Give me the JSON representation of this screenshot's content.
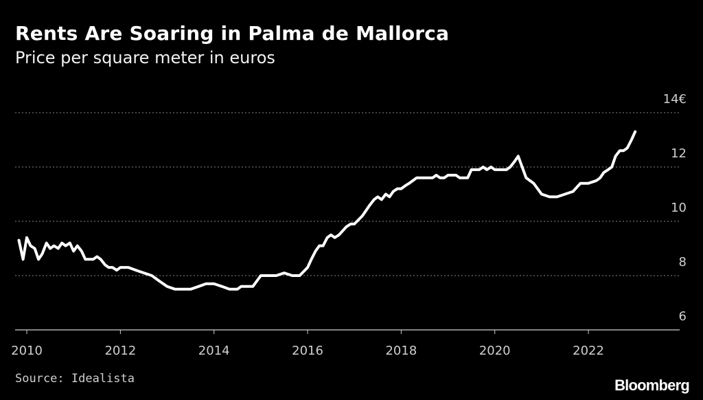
{
  "header": {
    "title": "Rents Are Soaring in Palma de Mallorca",
    "subtitle": "Price per square meter in euros"
  },
  "footer": {
    "source": "Source: Idealista",
    "brand": "Bloomberg"
  },
  "colors": {
    "background": "#000000",
    "line": "#ffffff",
    "grid": "#8a8a8a",
    "text": "#cfcfcf"
  },
  "chart_data": {
    "type": "line",
    "title": "Rents Are Soaring in Palma de Mallorca",
    "subtitle": "Price per square meter in euros",
    "xlabel": "",
    "ylabel": "",
    "xlim": [
      2009.75,
      2023.95
    ],
    "ylim": [
      6,
      14
    ],
    "x_ticks": [
      2010,
      2012,
      2014,
      2016,
      2018,
      2020,
      2022
    ],
    "x_tick_labels": [
      "2010",
      "2012",
      "2014",
      "2016",
      "2018",
      "2020",
      "2022"
    ],
    "y_ticks": [
      6,
      8,
      10,
      12,
      14
    ],
    "y_tick_labels": [
      "6",
      "8",
      "10",
      "12",
      "14€"
    ],
    "grid": true,
    "series": [
      {
        "name": "Price per square meter",
        "x": [
          2009.83,
          2009.92,
          2010.0,
          2010.08,
          2010.17,
          2010.25,
          2010.33,
          2010.42,
          2010.5,
          2010.58,
          2010.67,
          2010.75,
          2010.83,
          2010.92,
          2011.0,
          2011.08,
          2011.17,
          2011.25,
          2011.33,
          2011.42,
          2011.5,
          2011.58,
          2011.67,
          2011.75,
          2011.83,
          2011.92,
          2012.0,
          2012.17,
          2012.33,
          2012.5,
          2012.67,
          2012.83,
          2013.0,
          2013.17,
          2013.33,
          2013.5,
          2013.67,
          2013.83,
          2014.0,
          2014.17,
          2014.33,
          2014.5,
          2014.58,
          2014.67,
          2014.83,
          2015.0,
          2015.08,
          2015.17,
          2015.33,
          2015.5,
          2015.67,
          2015.83,
          2016.0,
          2016.08,
          2016.17,
          2016.25,
          2016.33,
          2016.42,
          2016.5,
          2016.58,
          2016.67,
          2016.83,
          2016.92,
          2017.0,
          2017.17,
          2017.25,
          2017.33,
          2017.42,
          2017.5,
          2017.58,
          2017.67,
          2017.75,
          2017.83,
          2017.92,
          2018.0,
          2018.08,
          2018.17,
          2018.25,
          2018.33,
          2018.42,
          2018.5,
          2018.67,
          2018.75,
          2018.83,
          2018.92,
          2019.0,
          2019.17,
          2019.25,
          2019.33,
          2019.42,
          2019.5,
          2019.58,
          2019.67,
          2019.75,
          2019.83,
          2019.92,
          2020.0,
          2020.08,
          2020.17,
          2020.25,
          2020.33,
          2020.42,
          2020.5,
          2020.67,
          2020.83,
          2021.0,
          2021.17,
          2021.33,
          2021.5,
          2021.67,
          2021.83,
          2022.0,
          2022.17,
          2022.25,
          2022.33,
          2022.42,
          2022.5,
          2022.58,
          2022.67,
          2022.75,
          2022.83,
          2022.92,
          2023.0
        ],
        "values": [
          9.3,
          8.6,
          9.4,
          9.1,
          9.0,
          8.6,
          8.8,
          9.2,
          9.0,
          9.1,
          9.0,
          9.2,
          9.1,
          9.2,
          8.9,
          9.1,
          8.9,
          8.6,
          8.6,
          8.6,
          8.7,
          8.6,
          8.4,
          8.3,
          8.3,
          8.2,
          8.3,
          8.3,
          8.2,
          8.1,
          8.0,
          7.8,
          7.6,
          7.5,
          7.5,
          7.5,
          7.6,
          7.7,
          7.7,
          7.6,
          7.5,
          7.5,
          7.6,
          7.6,
          7.6,
          8.0,
          8.0,
          8.0,
          8.0,
          8.1,
          8.0,
          8.0,
          8.3,
          8.6,
          8.9,
          9.1,
          9.1,
          9.4,
          9.5,
          9.4,
          9.5,
          9.8,
          9.9,
          9.9,
          10.2,
          10.4,
          10.6,
          10.8,
          10.9,
          10.8,
          11.0,
          10.9,
          11.1,
          11.2,
          11.2,
          11.3,
          11.4,
          11.5,
          11.6,
          11.6,
          11.6,
          11.6,
          11.7,
          11.6,
          11.6,
          11.7,
          11.7,
          11.6,
          11.6,
          11.6,
          11.9,
          11.9,
          11.9,
          12.0,
          11.9,
          12.0,
          11.9,
          11.9,
          11.9,
          11.9,
          12.0,
          12.2,
          12.4,
          11.6,
          11.4,
          11.0,
          10.9,
          10.9,
          11.0,
          11.1,
          11.4,
          11.4,
          11.5,
          11.6,
          11.8,
          11.9,
          12.0,
          12.4,
          12.6,
          12.6,
          12.7,
          13.0,
          13.3
        ]
      }
    ]
  }
}
